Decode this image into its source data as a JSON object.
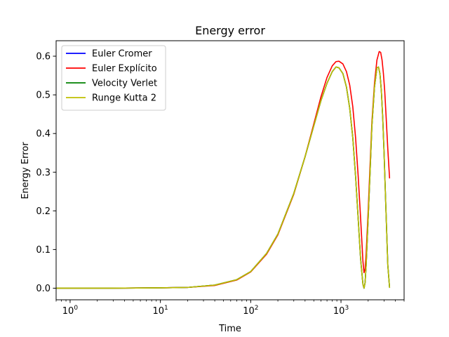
{
  "chart_data": {
    "type": "line",
    "title": "Energy error",
    "xlabel": "Time",
    "ylabel": "Energy Error",
    "xscale": "log",
    "xlim": [
      0.7,
      5000
    ],
    "ylim": [
      -0.03,
      0.64
    ],
    "xticks": [
      {
        "value": 1,
        "base": "10",
        "exp": "0"
      },
      {
        "value": 10,
        "base": "10",
        "exp": "1"
      },
      {
        "value": 100,
        "base": "10",
        "exp": "2"
      },
      {
        "value": 1000,
        "base": "10",
        "exp": "3"
      }
    ],
    "yticks": [
      0.0,
      0.1,
      0.2,
      0.3,
      0.4,
      0.5,
      0.6
    ],
    "ytick_labels": [
      "0.0",
      "0.1",
      "0.2",
      "0.3",
      "0.4",
      "0.5",
      "0.6"
    ],
    "grid": false,
    "legend_position": "top-left",
    "series": [
      {
        "name": "Euler Cromer",
        "color": "#0000ff",
        "x": [
          0.7,
          1,
          3,
          10,
          20,
          40,
          70,
          100,
          150,
          200,
          300,
          400,
          500,
          600,
          700,
          800,
          880,
          950,
          1050,
          1150,
          1250,
          1350,
          1450,
          1550,
          1650,
          1750,
          1800,
          1850,
          1900,
          2000,
          2100,
          2200,
          2350,
          2500,
          2600,
          2700,
          2800,
          2900,
          3000,
          3150,
          3300,
          3450
        ],
        "y": [
          0,
          0,
          0,
          0.001,
          0.002,
          0.008,
          0.022,
          0.043,
          0.09,
          0.14,
          0.245,
          0.34,
          0.42,
          0.485,
          0.53,
          0.56,
          0.572,
          0.57,
          0.555,
          0.52,
          0.465,
          0.39,
          0.29,
          0.18,
          0.075,
          0.01,
          0.0,
          0.015,
          0.06,
          0.18,
          0.3,
          0.42,
          0.52,
          0.57,
          0.572,
          0.555,
          0.51,
          0.44,
          0.35,
          0.2,
          0.06,
          0.002
        ]
      },
      {
        "name": "Euler Explícito",
        "color": "#ff0000",
        "x": [
          0.7,
          1,
          3,
          10,
          20,
          40,
          70,
          100,
          150,
          200,
          300,
          400,
          500,
          600,
          700,
          800,
          880,
          950,
          1050,
          1150,
          1250,
          1350,
          1450,
          1550,
          1650,
          1750,
          1800,
          1850,
          1900,
          2000,
          2100,
          2200,
          2350,
          2500,
          2650,
          2750,
          2850,
          2950,
          3050,
          3150,
          3300,
          3450
        ],
        "y": [
          0,
          0,
          0,
          0.001,
          0.002,
          0.007,
          0.021,
          0.042,
          0.088,
          0.138,
          0.243,
          0.34,
          0.425,
          0.495,
          0.545,
          0.575,
          0.586,
          0.587,
          0.58,
          0.56,
          0.525,
          0.47,
          0.39,
          0.29,
          0.18,
          0.07,
          0.04,
          0.05,
          0.09,
          0.2,
          0.32,
          0.43,
          0.53,
          0.59,
          0.612,
          0.61,
          0.59,
          0.555,
          0.51,
          0.45,
          0.36,
          0.285
        ]
      },
      {
        "name": "Velocity Verlet",
        "color": "#008000",
        "x": [
          0.7,
          1,
          3,
          10,
          20,
          40,
          70,
          100,
          150,
          200,
          300,
          400,
          500,
          600,
          700,
          800,
          880,
          950,
          1050,
          1150,
          1250,
          1350,
          1450,
          1550,
          1650,
          1750,
          1800,
          1850,
          1900,
          2000,
          2100,
          2200,
          2350,
          2500,
          2600,
          2700,
          2800,
          2900,
          3000,
          3150,
          3300,
          3450
        ],
        "y": [
          0,
          0,
          0,
          0.001,
          0.002,
          0.008,
          0.022,
          0.043,
          0.09,
          0.14,
          0.245,
          0.34,
          0.42,
          0.485,
          0.53,
          0.56,
          0.572,
          0.57,
          0.555,
          0.52,
          0.465,
          0.39,
          0.29,
          0.18,
          0.075,
          0.01,
          0.0,
          0.015,
          0.06,
          0.18,
          0.3,
          0.42,
          0.52,
          0.57,
          0.572,
          0.555,
          0.51,
          0.44,
          0.35,
          0.2,
          0.06,
          0.002
        ]
      },
      {
        "name": "Runge Kutta 2",
        "color": "#bfbf00",
        "x": [
          0.7,
          1,
          3,
          10,
          20,
          40,
          70,
          100,
          150,
          200,
          300,
          400,
          500,
          600,
          700,
          800,
          880,
          950,
          1050,
          1150,
          1250,
          1350,
          1450,
          1550,
          1650,
          1750,
          1800,
          1850,
          1900,
          2000,
          2100,
          2200,
          2350,
          2500,
          2600,
          2700,
          2800,
          2900,
          3000,
          3150,
          3300,
          3450
        ],
        "y": [
          0,
          0,
          0,
          0.001,
          0.002,
          0.008,
          0.022,
          0.043,
          0.09,
          0.14,
          0.245,
          0.34,
          0.42,
          0.485,
          0.53,
          0.56,
          0.572,
          0.57,
          0.555,
          0.52,
          0.465,
          0.39,
          0.29,
          0.18,
          0.075,
          0.01,
          0.0,
          0.015,
          0.06,
          0.18,
          0.3,
          0.42,
          0.52,
          0.57,
          0.572,
          0.555,
          0.51,
          0.44,
          0.35,
          0.2,
          0.06,
          0.002
        ]
      }
    ]
  }
}
